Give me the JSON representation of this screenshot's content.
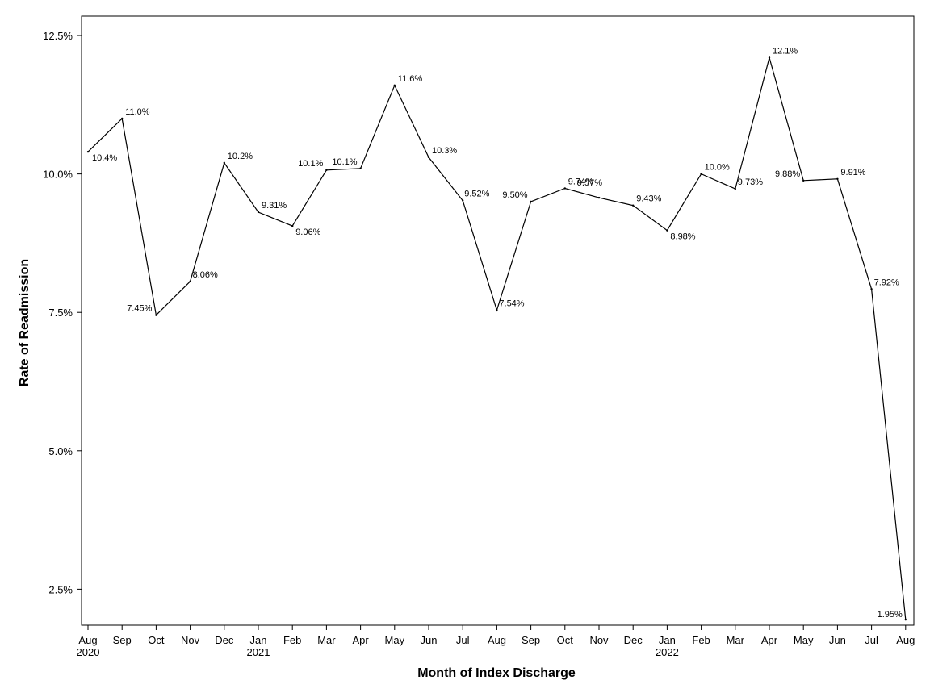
{
  "chart_data": {
    "type": "line",
    "title": "",
    "xlabel": "Month of Index Discharge",
    "ylabel": "Rate of Readmission",
    "ylim": [
      1.85,
      12.85
    ],
    "yticks": [
      "2.5%",
      "5.0%",
      "7.5%",
      "10.0%",
      "12.5%"
    ],
    "ytick_values": [
      2.5,
      5.0,
      7.5,
      10.0,
      12.5
    ],
    "grid": false,
    "legend": "none",
    "line_color": "#000000",
    "x": [
      {
        "month": "Aug",
        "year": "2020"
      },
      {
        "month": "Sep",
        "year": ""
      },
      {
        "month": "Oct",
        "year": ""
      },
      {
        "month": "Nov",
        "year": ""
      },
      {
        "month": "Dec",
        "year": ""
      },
      {
        "month": "Jan",
        "year": "2021"
      },
      {
        "month": "Feb",
        "year": ""
      },
      {
        "month": "Mar",
        "year": ""
      },
      {
        "month": "Apr",
        "year": ""
      },
      {
        "month": "May",
        "year": ""
      },
      {
        "month": "Jun",
        "year": ""
      },
      {
        "month": "Jul",
        "year": ""
      },
      {
        "month": "Aug",
        "year": ""
      },
      {
        "month": "Sep",
        "year": ""
      },
      {
        "month": "Oct",
        "year": ""
      },
      {
        "month": "Nov",
        "year": ""
      },
      {
        "month": "Dec",
        "year": ""
      },
      {
        "month": "Jan",
        "year": "2022"
      },
      {
        "month": "Feb",
        "year": ""
      },
      {
        "month": "Mar",
        "year": ""
      },
      {
        "month": "Apr",
        "year": ""
      },
      {
        "month": "May",
        "year": ""
      },
      {
        "month": "Jun",
        "year": ""
      },
      {
        "month": "Jul",
        "year": ""
      },
      {
        "month": "Aug",
        "year": ""
      }
    ],
    "series": [
      {
        "values": [
          10.4,
          11.0,
          7.45,
          8.06,
          10.2,
          9.31,
          9.06,
          10.07,
          10.1,
          11.6,
          10.3,
          9.52,
          7.54,
          9.5,
          9.74,
          9.57,
          9.43,
          8.98,
          10.0,
          9.73,
          12.1,
          9.88,
          9.91,
          7.92,
          1.95
        ],
        "labels": [
          "10.4%",
          "11.0%",
          "7.45%",
          "8.06%",
          "10.2%",
          "9.31%",
          "9.06%",
          "10.1%",
          "10.1%",
          "11.6%",
          "10.3%",
          "9.52%",
          "7.54%",
          "9.50%",
          "9.74%",
          "9.57%",
          "9.43%",
          "8.98%",
          "10.0%",
          "9.73%",
          "12.1%",
          "9.88%",
          "9.91%",
          "7.92%",
          "1.95%"
        ]
      }
    ]
  }
}
